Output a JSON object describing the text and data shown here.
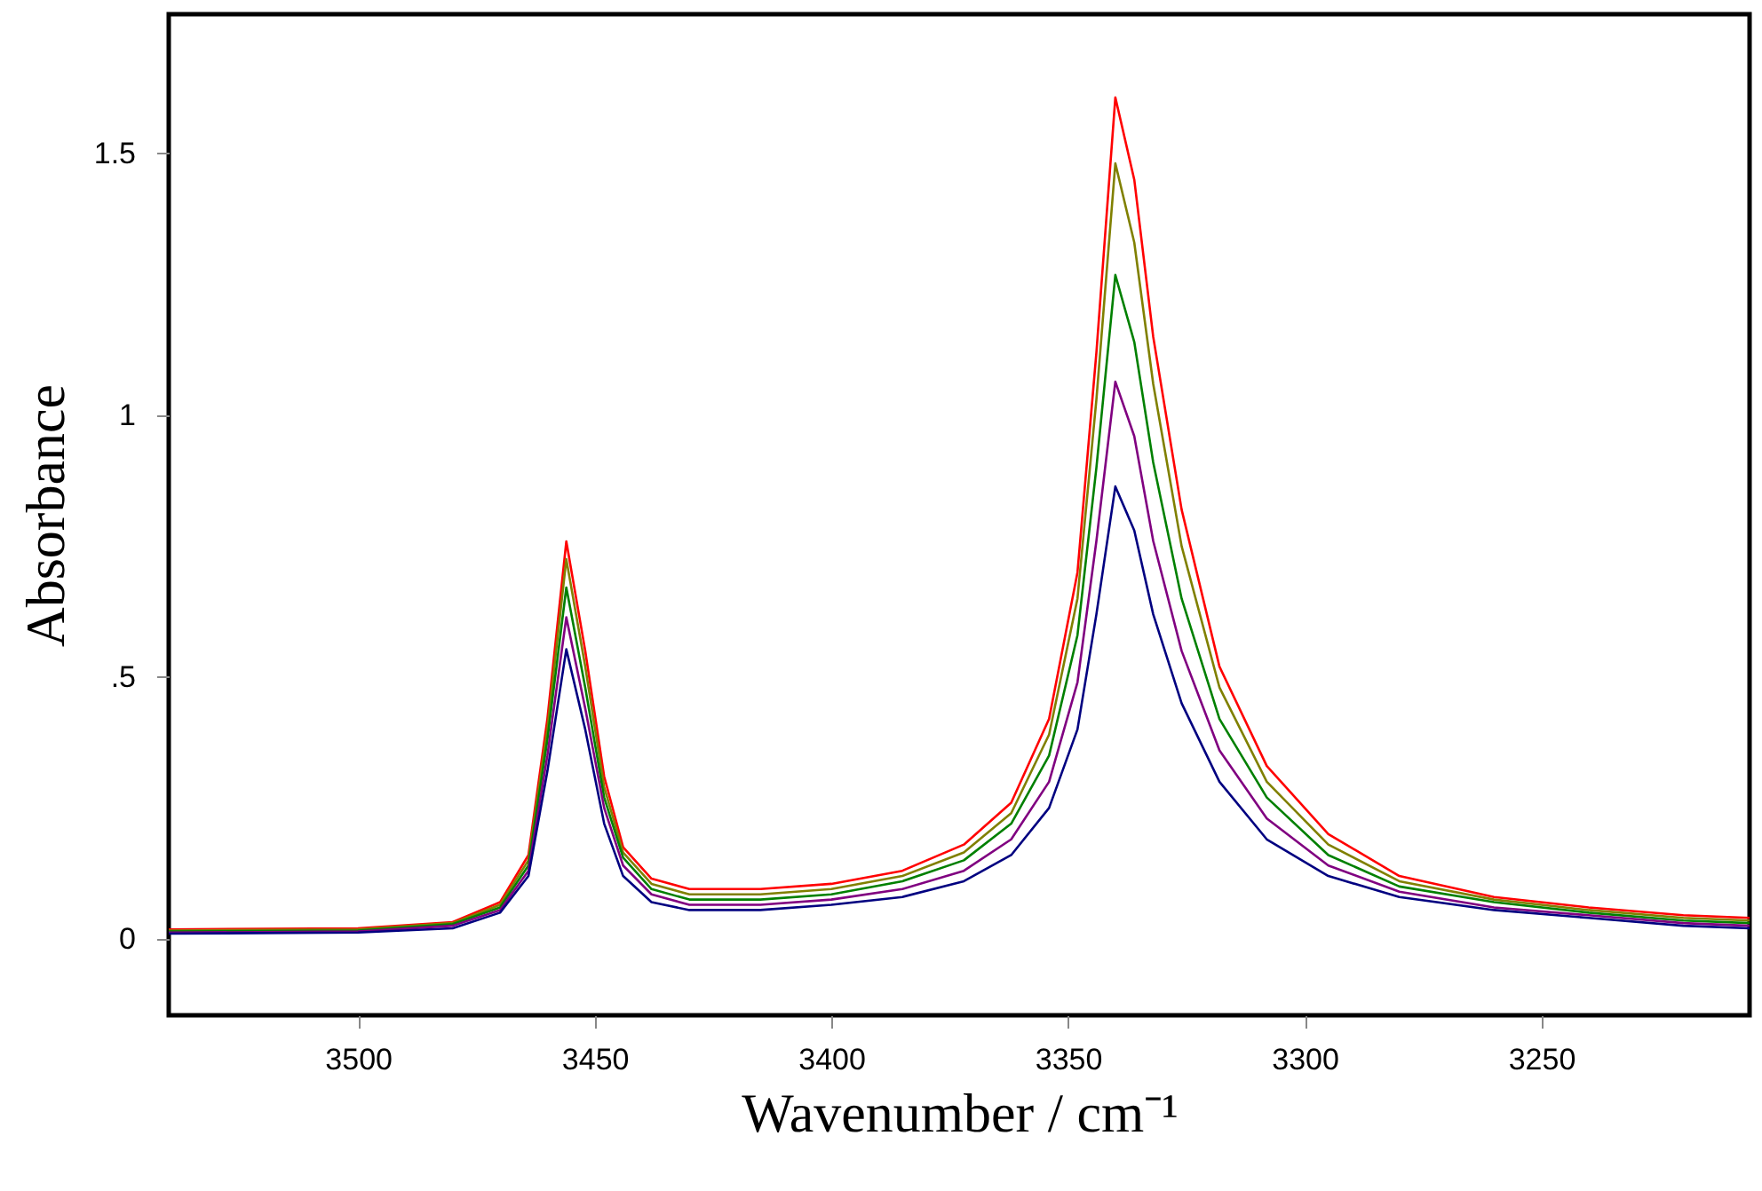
{
  "chart_data": {
    "type": "line",
    "xlabel": "Wavenumber / cm⁻¹",
    "ylabel": "Absorbance",
    "x": [
      3540,
      3500,
      3480,
      3470,
      3464,
      3460,
      3456,
      3452,
      3448,
      3444,
      3438,
      3430,
      3415,
      3400,
      3385,
      3372,
      3362,
      3354,
      3348,
      3344,
      3340,
      3336,
      3332,
      3326,
      3318,
      3308,
      3295,
      3280,
      3260,
      3240,
      3220,
      3206
    ],
    "series": [
      {
        "color": "#ff0000",
        "values": [
          0.018,
          0.02,
          0.032,
          0.07,
          0.16,
          0.42,
          0.759,
          0.55,
          0.31,
          0.175,
          0.115,
          0.095,
          0.095,
          0.105,
          0.13,
          0.18,
          0.26,
          0.42,
          0.7,
          1.12,
          1.607,
          1.45,
          1.15,
          0.82,
          0.52,
          0.33,
          0.2,
          0.12,
          0.08,
          0.06,
          0.045,
          0.04
        ]
      },
      {
        "color": "#808000",
        "values": [
          0.016,
          0.018,
          0.03,
          0.065,
          0.15,
          0.4,
          0.725,
          0.52,
          0.29,
          0.165,
          0.105,
          0.085,
          0.085,
          0.095,
          0.12,
          0.165,
          0.24,
          0.39,
          0.65,
          1.03,
          1.481,
          1.33,
          1.06,
          0.75,
          0.48,
          0.3,
          0.18,
          0.11,
          0.075,
          0.055,
          0.04,
          0.035
        ]
      },
      {
        "color": "#008000",
        "values": [
          0.014,
          0.016,
          0.028,
          0.06,
          0.14,
          0.38,
          0.671,
          0.48,
          0.27,
          0.155,
          0.095,
          0.075,
          0.075,
          0.085,
          0.11,
          0.15,
          0.22,
          0.35,
          0.58,
          0.9,
          1.268,
          1.14,
          0.91,
          0.65,
          0.42,
          0.27,
          0.16,
          0.1,
          0.07,
          0.05,
          0.035,
          0.03
        ]
      },
      {
        "color": "#800080",
        "values": [
          0.012,
          0.014,
          0.025,
          0.055,
          0.13,
          0.35,
          0.614,
          0.44,
          0.25,
          0.14,
          0.085,
          0.065,
          0.065,
          0.075,
          0.095,
          0.13,
          0.19,
          0.3,
          0.49,
          0.76,
          1.064,
          0.96,
          0.76,
          0.55,
          0.36,
          0.23,
          0.14,
          0.09,
          0.06,
          0.045,
          0.03,
          0.025
        ]
      },
      {
        "color": "#000080",
        "values": [
          0.01,
          0.012,
          0.02,
          0.05,
          0.12,
          0.32,
          0.553,
          0.4,
          0.22,
          0.12,
          0.07,
          0.055,
          0.055,
          0.065,
          0.08,
          0.11,
          0.16,
          0.25,
          0.4,
          0.62,
          0.864,
          0.78,
          0.62,
          0.45,
          0.3,
          0.19,
          0.12,
          0.08,
          0.055,
          0.04,
          0.025,
          0.02
        ]
      }
    ],
    "xlim": [
      3540,
      3206
    ],
    "xticks": [
      3500,
      3450,
      3400,
      3350,
      3300,
      3250
    ],
    "ylim": [
      -0.146,
      1.766
    ],
    "yticks": [
      0,
      {
        "value": 0.5,
        "label": ".5"
      },
      1,
      1.5
    ],
    "grid": false
  }
}
